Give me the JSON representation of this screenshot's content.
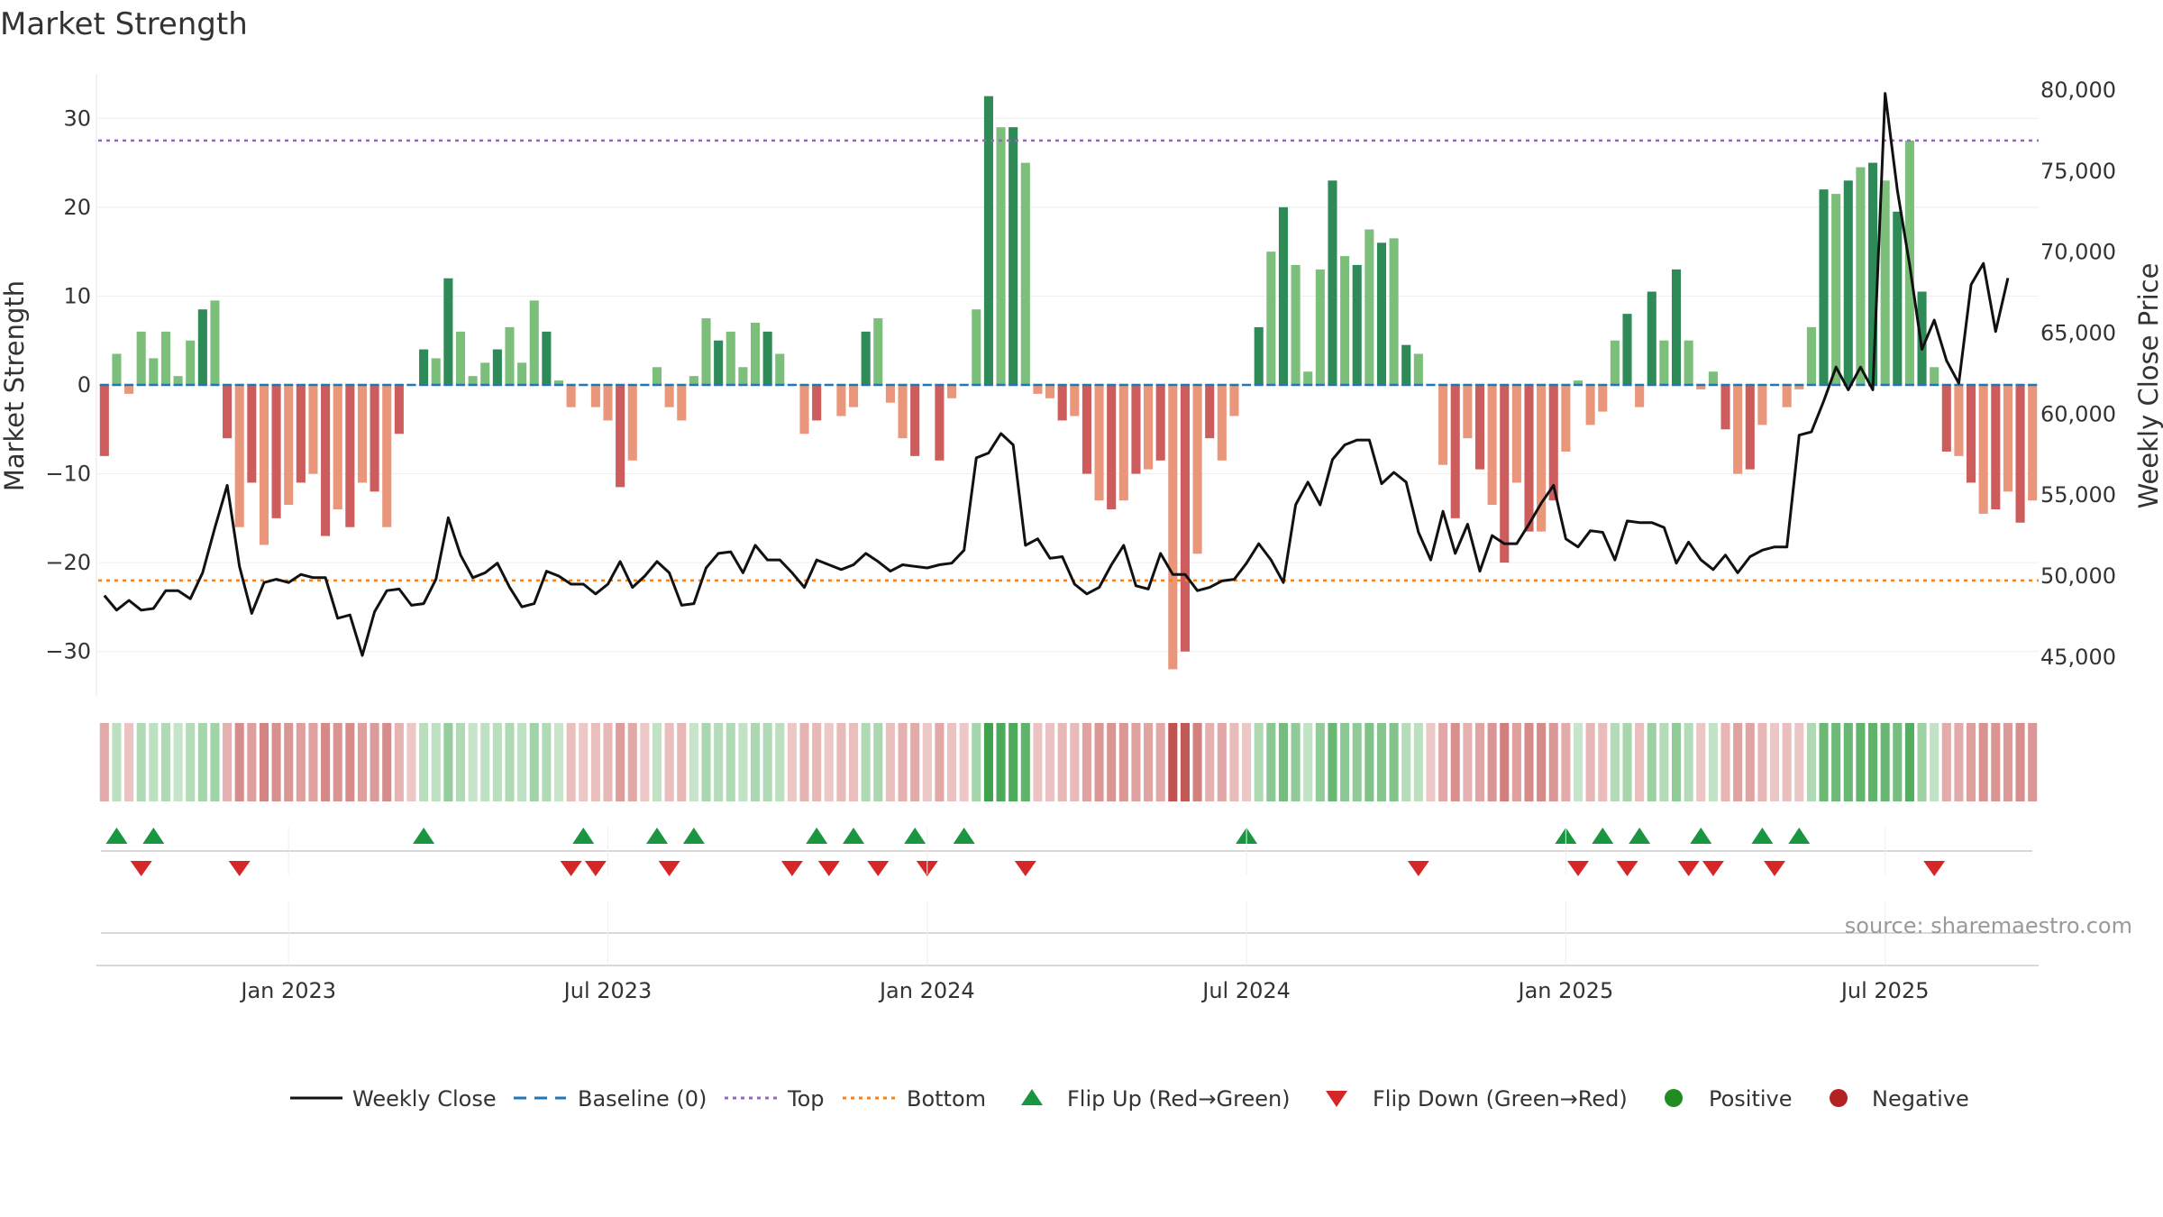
{
  "chart_data": {
    "type": "bar",
    "title": "Market Strength",
    "ylabel": "Market Strength",
    "y2label": "Weekly Close Price",
    "ylim": [
      -35,
      35
    ],
    "y2lim": [
      42600,
      81000
    ],
    "yticks": [
      30,
      20,
      10,
      0,
      -10,
      -20,
      -30
    ],
    "yticks_labels": [
      "30",
      "20",
      "10",
      "0",
      "−10",
      "−20",
      "−30"
    ],
    "y2ticks": [
      80000,
      75000,
      70000,
      65000,
      60000,
      55000,
      50000,
      45000
    ],
    "y2ticks_labels": [
      "80,000",
      "75,000",
      "70,000",
      "65,000",
      "60,000",
      "55,000",
      "50,000",
      "45,000"
    ],
    "xticks": [
      "Jan 2023",
      "Jul 2023",
      "Jan 2024",
      "Jul 2024",
      "Jan 2025",
      "Jul 2025"
    ],
    "xtick_week_index": [
      15,
      41,
      67,
      93,
      119,
      145
    ],
    "top_line": 27.5,
    "bottom_line": -22,
    "baseline": 0,
    "grid": true,
    "legend_position": "bottom",
    "strength": [
      -8,
      3.5,
      -1,
      6,
      3,
      6,
      1,
      5,
      8.5,
      9.5,
      -6,
      -16,
      -11,
      -18,
      -15,
      -13.5,
      -11,
      -10,
      -17,
      -14,
      -16,
      -11,
      -12,
      -16,
      -5.5,
      0,
      4,
      3,
      12,
      6,
      1,
      2.5,
      4,
      6.5,
      2.5,
      9.5,
      6,
      0.5,
      -2.5,
      0,
      -2.5,
      -4,
      -11.5,
      -8.5,
      0,
      2,
      -2.5,
      -4,
      1,
      7.5,
      5,
      6,
      2,
      7,
      6,
      3.5,
      0,
      -5.5,
      -4,
      0,
      -3.5,
      -2.5,
      6,
      7.5,
      -2,
      -6,
      -8,
      0,
      -8.5,
      -1.5,
      0,
      8.5,
      32.5,
      29,
      29,
      25,
      -1,
      -1.5,
      -4,
      -3.5,
      -10,
      -13,
      -14,
      -13,
      -10,
      -9.5,
      -8.5,
      -32,
      -30,
      -19,
      -6,
      -8.5,
      -3.5,
      0,
      6.5,
      15,
      20,
      13.5,
      1.5,
      13,
      23,
      14.5,
      13.5,
      17.5,
      16,
      16.5,
      4.5,
      3.5,
      0,
      -9,
      -15,
      -6,
      -9.5,
      -13.5,
      -20,
      -11,
      -16.5,
      -16.5,
      -13,
      -7.5,
      0.5,
      -4.5,
      -3,
      5,
      8,
      -2.5,
      10.5,
      5,
      13,
      5,
      -0.5,
      1.5,
      -5,
      -10,
      -9.5,
      -4.5,
      0,
      -2.5,
      -0.5,
      6.5,
      22,
      21.5,
      23,
      24.5,
      25,
      23,
      19.5,
      27.5,
      10.5,
      2,
      -7.5,
      -8,
      -11,
      -14.5,
      -14,
      -12,
      -15.5,
      -13
    ],
    "weekly_close": [
      48800,
      47900,
      48500,
      47900,
      48000,
      49100,
      49100,
      48600,
      50200,
      53000,
      55600,
      50600,
      47700,
      49600,
      49800,
      49600,
      50100,
      49900,
      49900,
      47400,
      47600,
      45100,
      47800,
      49100,
      49200,
      48200,
      48300,
      49800,
      53600,
      51300,
      49900,
      50200,
      50800,
      49300,
      48100,
      48300,
      50300,
      50000,
      49500,
      49500,
      48900,
      49500,
      50900,
      49300,
      50000,
      50900,
      50200,
      48200,
      48300,
      50500,
      51400,
      51500,
      50200,
      51900,
      51000,
      51000,
      50200,
      49300,
      51000,
      50700,
      50400,
      50700,
      51400,
      50900,
      50300,
      50700,
      50600,
      50500,
      50700,
      50800,
      51600,
      57300,
      57600,
      58800,
      58100,
      51900,
      52300,
      51100,
      51200,
      49500,
      48900,
      49300,
      50700,
      51900,
      49400,
      49200,
      51400,
      50100,
      50100,
      49100,
      49300,
      49700,
      49800,
      50800,
      52000,
      51000,
      49600,
      54400,
      55800,
      54400,
      57200,
      58100,
      58400,
      58400,
      55700,
      56400,
      55800,
      52700,
      51000,
      54000,
      51400,
      53200,
      50300,
      52500,
      52000,
      52000,
      53200,
      54500,
      55600,
      52300,
      51800,
      52800,
      52700,
      51000,
      53400,
      53300,
      53300,
      53000,
      50800,
      52100,
      51000,
      50400,
      51300,
      50200,
      51200,
      51600,
      51800,
      51800,
      58700,
      58900,
      60800,
      62900,
      61500,
      62900,
      61500,
      79800,
      73800,
      69200,
      64000,
      65800,
      63300,
      61900,
      68000,
      69300,
      65100,
      68400
    ]
  },
  "flip_up_weeks": [
    1,
    4,
    26,
    39,
    45,
    48,
    58,
    61,
    66,
    70,
    93,
    119,
    122,
    125,
    130,
    135,
    138
  ],
  "flip_down_weeks": [
    3,
    11,
    38,
    40,
    46,
    56,
    59,
    63,
    67,
    75,
    107,
    120,
    124,
    129,
    131,
    136,
    149
  ],
  "legend": {
    "weekly_close": "Weekly Close",
    "baseline": "Baseline (0)",
    "top": "Top",
    "bottom": "Bottom",
    "flip_up": "Flip Up (Red→Green)",
    "flip_down": "Flip Down (Green→Red)",
    "positive": "Positive",
    "negative": "Negative"
  },
  "source": "source: sharemaestro.com",
  "colors": {
    "positive_bar": "#2e8b57",
    "positive_bar_light": "#7bbf7b",
    "negative_bar": "#cd5c5c",
    "negative_bar_light": "#e9967a",
    "top_line": "#9467bd",
    "bottom_line": "#ff7f0e",
    "baseline": "#1f77b4",
    "price_line": "#111111",
    "flip_up": "#1a9641",
    "flip_down": "#d62728",
    "positive_dot": "#228b22",
    "negative_dot": "#b22222"
  }
}
